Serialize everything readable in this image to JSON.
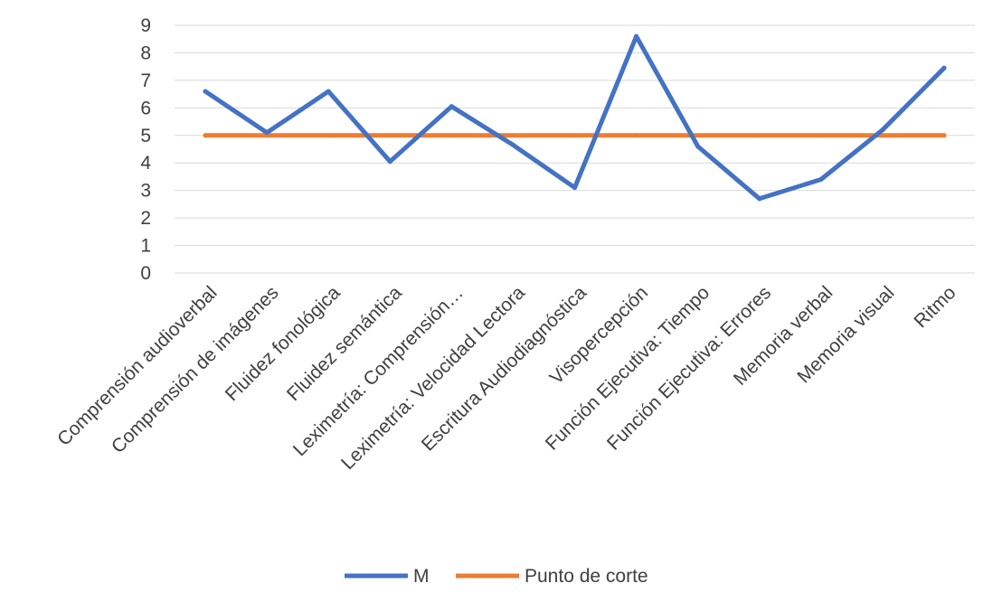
{
  "chart_data": {
    "type": "line",
    "categories": [
      "Comprensión audioverbal",
      "Comprensión de imágenes",
      "Fluidez fonológica",
      "Fluidez semántica",
      "Leximetría: Comprensión…",
      "Leximetría: Velocidad Lectora",
      "Escritura Audiodiagnóstica",
      "Visopercepción",
      "Función Ejecutiva: Tiempo",
      "Función Ejecutiva: Errores",
      "Memoria verbal",
      "Memoria visual",
      "Ritmo"
    ],
    "series": [
      {
        "name": "M",
        "color": "#4472c4",
        "values": [
          6.6,
          5.1,
          6.6,
          4.05,
          6.05,
          4.65,
          3.1,
          8.6,
          4.6,
          2.7,
          3.4,
          5.2,
          7.45
        ]
      },
      {
        "name": "Punto de corte",
        "color": "#ed7d31",
        "values": [
          5,
          5,
          5,
          5,
          5,
          5,
          5,
          5,
          5,
          5,
          5,
          5,
          5
        ]
      }
    ],
    "yticks": [
      "0",
      "1",
      "2",
      "3",
      "4",
      "5",
      "6",
      "7",
      "8",
      "9"
    ],
    "ylim": [
      0,
      9
    ],
    "grid": true,
    "legend_position": "bottom"
  }
}
